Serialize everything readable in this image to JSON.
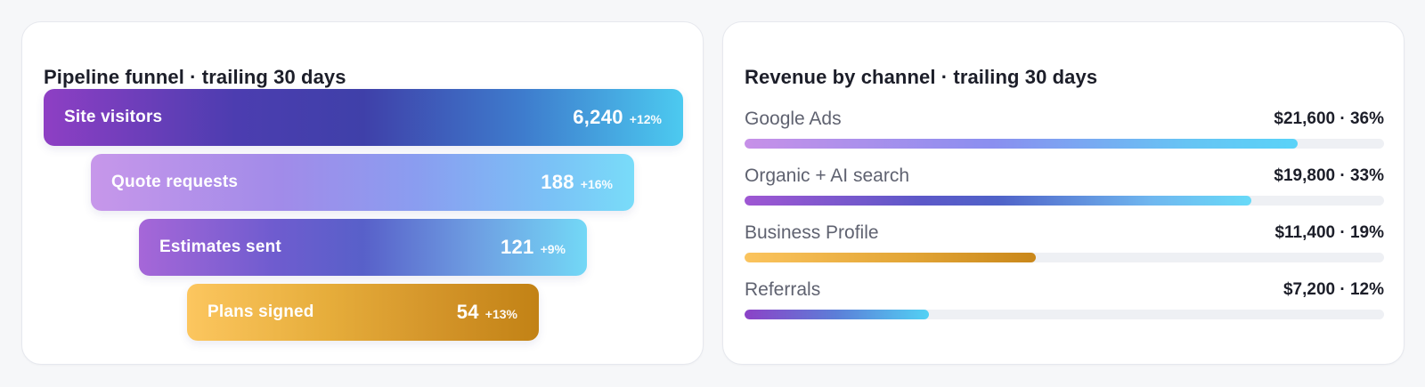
{
  "funnel": {
    "title": "Pipeline funnel · trailing 30 days",
    "stages": [
      {
        "label": "Site visitors",
        "value": "6,240",
        "delta": "+12%"
      },
      {
        "label": "Quote requests",
        "value": "188",
        "delta": "+16%"
      },
      {
        "label": "Estimates sent",
        "value": "121",
        "delta": "+9%"
      },
      {
        "label": "Plans signed",
        "value": "54",
        "delta": "+13%"
      }
    ]
  },
  "revenue": {
    "title": "Revenue by channel · trailing 30 days",
    "channels": [
      {
        "name": "Google Ads",
        "value": "$21,600 · 36%",
        "fill_fraction": 0.865
      },
      {
        "name": "Organic + AI search",
        "value": "$19,800 · 33%",
        "fill_fraction": 0.792
      },
      {
        "name": "Business Profile",
        "value": "$11,400 · 19%",
        "fill_fraction": 0.456
      },
      {
        "name": "Referrals",
        "value": "$7,200 · 12%",
        "fill_fraction": 0.288
      }
    ]
  },
  "colors": {
    "page_background": "#f6f7f9",
    "card_background": "#ffffff",
    "title_text": "#1c1e29",
    "channel_name_text": "#5f6270",
    "track": "#eef0f4",
    "purple": "#8e3fc4",
    "indigo": "#3f40a9",
    "cyan": "#4ccaf0",
    "amber": "#fcc65f",
    "amber_dark": "#c28215"
  }
}
